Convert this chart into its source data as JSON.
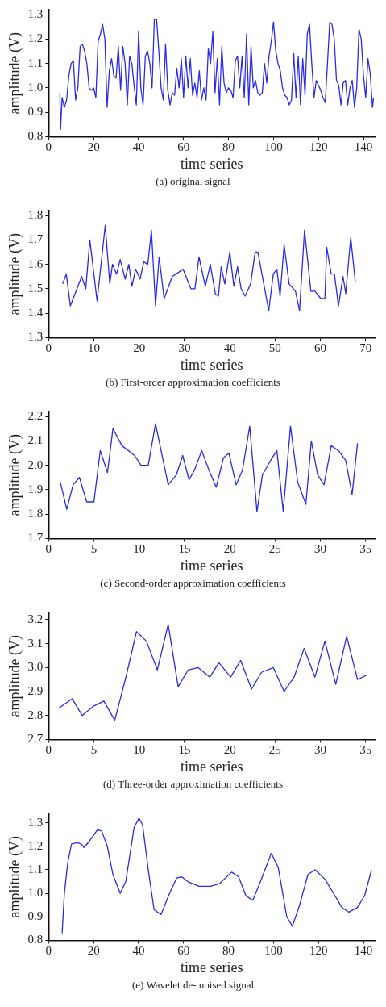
{
  "chart_data": [
    {
      "type": "line",
      "xlabel": "time series",
      "ylabel": "amplitude (V)",
      "annotations": [
        "(a) original signal"
      ],
      "xlim": [
        0,
        145
      ],
      "xticks": [
        0,
        20,
        40,
        60,
        80,
        100,
        120,
        140
      ],
      "ylim": [
        0.8,
        1.32
      ],
      "yticks": [
        0.8,
        0.9,
        {
          "value": 1,
          "label": "1.0"
        },
        1.1,
        1.2,
        1.3
      ],
      "marker": "none",
      "series": [
        {
          "color": "#2a2ae8",
          "x": [
            5,
            5.3,
            6,
            7,
            8,
            9,
            10,
            11,
            12,
            13,
            14,
            15,
            16,
            17,
            18,
            19,
            20,
            21,
            22,
            23,
            24,
            25,
            26,
            27,
            28,
            29,
            30,
            31,
            32,
            33,
            34,
            35,
            36,
            37,
            38,
            39,
            40,
            41,
            42,
            43,
            44,
            45,
            46,
            47,
            48,
            49,
            50,
            51,
            52,
            53,
            54,
            55,
            56,
            57,
            58,
            59,
            60,
            61,
            62,
            63,
            64,
            65,
            66,
            67,
            68,
            69,
            70,
            71,
            72,
            73,
            74,
            75,
            76,
            77,
            78,
            79,
            80,
            81,
            82,
            83,
            84,
            85,
            86,
            87,
            88,
            89,
            90,
            91,
            92,
            93,
            94,
            95,
            96,
            97,
            98,
            99,
            100,
            101,
            102,
            103,
            104,
            105,
            106,
            107,
            108,
            109,
            110,
            111,
            112,
            113,
            114,
            115,
            116,
            117,
            118,
            119,
            120,
            121,
            122,
            123,
            124,
            125,
            126,
            127,
            128,
            129,
            130,
            131,
            132,
            133,
            134,
            135,
            136,
            137,
            138,
            139,
            140,
            141,
            142,
            143,
            144,
            144.5
          ],
          "values": [
            0.98,
            0.83,
            0.96,
            0.92,
            0.95,
            1.05,
            1.1,
            1.11,
            0.95,
            1.0,
            1.17,
            1.18,
            1.15,
            1.1,
            1.0,
            0.99,
            1.0,
            0.96,
            1.19,
            1.22,
            1.26,
            1.2,
            0.92,
            1.07,
            1.12,
            1.05,
            1.04,
            1.17,
            0.99,
            1.17,
            1.1,
            0.93,
            1.13,
            1.1,
            1.01,
            0.93,
            1.23,
            1.0,
            0.93,
            1.13,
            1.15,
            1.1,
            1.0,
            1.28,
            1.28,
            1.15,
            1.0,
            0.95,
            1.18,
            0.99,
            0.93,
            0.98,
            0.97,
            1.08,
            1.0,
            1.12,
            0.96,
            1.13,
            1.0,
            1.12,
            0.97,
            1.02,
            0.96,
            1.07,
            0.95,
            1.0,
            0.95,
            1.16,
            1.1,
            1.23,
            0.98,
            1.12,
            0.93,
            1.17,
            1.02,
            0.98,
            1.0,
            0.99,
            0.96,
            1.11,
            1.13,
            1.0,
            1.13,
            0.96,
            1.22,
            0.93,
            1.17,
            1.0,
            1.03,
            0.98,
            0.97,
            0.98,
            1.1,
            1.02,
            1.13,
            1.19,
            1.27,
            1.15,
            1.1,
            1.07,
            1.0,
            0.97,
            0.96,
            0.93,
            0.95,
            1.14,
            0.96,
            1.13,
            0.93,
            1.12,
            0.97,
            1.22,
            1.26,
            1.1,
            0.96,
            1.03,
            1.01,
            0.99,
            0.96,
            0.94,
            1.1,
            1.27,
            1.26,
            1.2,
            1.03,
            1.01,
            0.93,
            1.02,
            1.03,
            0.93,
            1.0,
            1.03,
            0.92,
            1.0,
            1.24,
            1.2,
            1.05,
            0.96,
            1.12,
            1.06,
            0.92,
            0.96
          ]
        }
      ]
    },
    {
      "type": "line",
      "xlabel": "time series",
      "ylabel": "amplitude (V)",
      "annotations": [
        "(b) First-order approximation coefficients"
      ],
      "xlim": [
        0,
        72
      ],
      "xticks": [
        0,
        10,
        20,
        30,
        40,
        50,
        60,
        70
      ],
      "ylim": [
        1.3,
        1.82
      ],
      "yticks": [
        1.3,
        1.4,
        1.5,
        1.6,
        1.7,
        1.8
      ],
      "marker": "none",
      "series": [
        {
          "color": "#2a2ae8",
          "x": [
            3.1,
            3.9,
            4.8,
            7.3,
            8.2,
            9.1,
            10.7,
            12.5,
            13.5,
            14.1,
            15,
            15.8,
            16.9,
            17.7,
            18.4,
            19.2,
            20.2,
            21,
            21.9,
            22.7,
            23.6,
            24.4,
            25.5,
            27.3,
            29.7,
            31.4,
            32.3,
            33.2,
            34.6,
            35.7,
            36.8,
            37.5,
            38.1,
            38.9,
            40,
            40.9,
            41.7,
            42.5,
            43.4,
            44.6,
            45.6,
            46.2,
            48.6,
            49.6,
            50.4,
            51.1,
            52,
            53.1,
            54.5,
            55.4,
            56.5,
            57.9,
            58.8,
            60.1,
            61,
            61.4,
            62.4,
            63.1,
            64,
            65,
            65.6,
            66.7,
            67.7
          ],
          "values": [
            1.52,
            1.56,
            1.43,
            1.55,
            1.5,
            1.7,
            1.45,
            1.76,
            1.52,
            1.6,
            1.56,
            1.62,
            1.54,
            1.6,
            1.51,
            1.58,
            1.54,
            1.61,
            1.6,
            1.74,
            1.43,
            1.63,
            1.46,
            1.55,
            1.58,
            1.5,
            1.5,
            1.63,
            1.51,
            1.6,
            1.48,
            1.47,
            1.59,
            1.52,
            1.65,
            1.51,
            1.59,
            1.5,
            1.47,
            1.52,
            1.65,
            1.65,
            1.41,
            1.56,
            1.58,
            1.47,
            1.68,
            1.52,
            1.49,
            1.41,
            1.74,
            1.49,
            1.49,
            1.46,
            1.46,
            1.67,
            1.56,
            1.56,
            1.43,
            1.55,
            1.48,
            1.71,
            1.53
          ]
        }
      ]
    },
    {
      "type": "line",
      "xlabel": "time series",
      "ylabel": "amplitude (V)",
      "annotations": [
        "(c) Second-order approximation coefficients"
      ],
      "xlim": [
        0,
        36
      ],
      "xticks": [
        0,
        5,
        10,
        15,
        20,
        25,
        30,
        35
      ],
      "ylim": [
        1.7,
        2.22
      ],
      "yticks": [
        1.7,
        1.8,
        1.9,
        {
          "value": 2,
          "label": "2.0"
        },
        2.1,
        2.2
      ],
      "marker": "none",
      "series": [
        {
          "color": "#2a2ae8",
          "x": [
            1.3,
            2,
            2.7,
            3.4,
            4.2,
            5,
            5.7,
            6.5,
            7.1,
            8.1,
            9.5,
            10.2,
            11,
            11.8,
            13.2,
            14.1,
            14.8,
            15.5,
            16.1,
            16.9,
            17.7,
            18.5,
            19.3,
            19.9,
            20.7,
            21.4,
            22.2,
            23,
            23.6,
            24.5,
            25.2,
            25.9,
            26.7,
            27.5,
            28.4,
            29,
            29.7,
            30.4,
            31.2,
            32,
            32.8,
            33.5,
            34.1
          ],
          "values": [
            1.93,
            1.82,
            1.92,
            1.95,
            1.85,
            1.85,
            2.06,
            1.97,
            2.15,
            2.08,
            2.04,
            2.0,
            2.0,
            2.17,
            1.92,
            1.96,
            2.04,
            1.94,
            1.98,
            2.06,
            1.98,
            1.91,
            2.03,
            2.05,
            1.92,
            1.98,
            2.16,
            1.81,
            1.96,
            2.02,
            2.06,
            1.81,
            2.16,
            1.93,
            1.84,
            2.1,
            1.96,
            1.92,
            2.08,
            2.06,
            2.02,
            1.88,
            2.09
          ]
        }
      ]
    },
    {
      "type": "line",
      "xlabel": "time series",
      "ylabel": "amplitude (V)",
      "annotations": [
        "(d) Three-order approximation coefficients"
      ],
      "xlim": [
        0,
        36
      ],
      "xticks": [
        0,
        5,
        10,
        15,
        20,
        25,
        30,
        35
      ],
      "ylim": [
        2.7,
        3.23
      ],
      "yticks": [
        2.7,
        2.8,
        2.9,
        {
          "value": 3,
          "label": "3.0"
        },
        3.1,
        3.2
      ],
      "marker": "none",
      "series": [
        {
          "color": "#2a2ae8",
          "x": [
            1.1,
            2.6,
            3.7,
            5,
            6.1,
            7.3,
            8.6,
            9.7,
            10.8,
            12,
            13.2,
            14.3,
            15.4,
            16.5,
            17.8,
            18.8,
            20.1,
            21.2,
            22.4,
            23.5,
            24.8,
            26,
            27.1,
            28.2,
            29.4,
            30.5,
            31.7,
            32.9,
            34.1,
            35.2
          ],
          "values": [
            2.83,
            2.87,
            2.8,
            2.84,
            2.86,
            2.78,
            2.97,
            3.15,
            3.11,
            2.99,
            3.18,
            2.92,
            2.99,
            3.0,
            2.96,
            3.02,
            2.96,
            3.03,
            2.91,
            2.98,
            3.0,
            2.9,
            2.96,
            3.08,
            2.96,
            3.11,
            2.93,
            3.13,
            2.95,
            2.97
          ]
        }
      ]
    },
    {
      "type": "line",
      "xlabel": "time series",
      "ylabel": "amplitude (V)",
      "annotations": [
        "(e) Wavelet de- noised signal"
      ],
      "xlim": [
        0,
        145
      ],
      "xticks": [
        0,
        20,
        40,
        60,
        80,
        100,
        120,
        140
      ],
      "ylim": [
        0.8,
        1.34
      ],
      "yticks": [
        0.8,
        0.9,
        {
          "value": 1,
          "label": "1.0"
        },
        1.1,
        1.2,
        1.3
      ],
      "marker": "none",
      "series": [
        {
          "color": "#2a2ae8",
          "x": [
            6,
            7,
            8.5,
            10.2,
            12.7,
            14.4,
            15.7,
            18,
            21.7,
            23.6,
            26.1,
            28.6,
            31.8,
            34.3,
            38,
            40.2,
            41.8,
            44.3,
            46.9,
            50,
            53.8,
            56.9,
            59.2,
            61.9,
            66.9,
            72,
            75.8,
            81.4,
            84.5,
            87.7,
            90.8,
            94.6,
            99,
            102.1,
            105.9,
            108.4,
            111.6,
            115.3,
            118.5,
            122.9,
            127.3,
            130.4,
            133.5,
            137.3,
            140.5,
            143.6
          ],
          "values": [
            0.83,
            1.0,
            1.13,
            1.21,
            1.215,
            1.21,
            1.195,
            1.22,
            1.27,
            1.265,
            1.2,
            1.08,
            1.0,
            1.05,
            1.28,
            1.32,
            1.29,
            1.1,
            0.93,
            0.91,
            1.0,
            1.065,
            1.07,
            1.05,
            1.03,
            1.03,
            1.04,
            1.09,
            1.07,
            0.99,
            0.97,
            1.06,
            1.17,
            1.11,
            0.9,
            0.86,
            0.95,
            1.08,
            1.1,
            1.06,
            0.99,
            0.94,
            0.92,
            0.94,
            0.99,
            1.1
          ]
        }
      ]
    }
  ]
}
